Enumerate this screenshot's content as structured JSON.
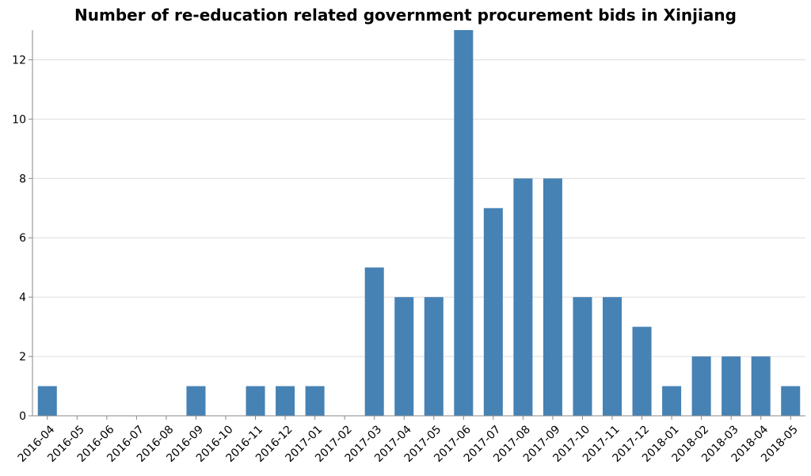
{
  "chart_data": {
    "type": "bar",
    "title": "Number of re-education related government procurement bids in Xinjiang",
    "xlabel": "",
    "ylabel": "",
    "categories": [
      "2016-04",
      "2016-05",
      "2016-06",
      "2016-07",
      "2016-08",
      "2016-09",
      "2016-10",
      "2016-11",
      "2016-12",
      "2017-01",
      "2017-02",
      "2017-03",
      "2017-04",
      "2017-05",
      "2017-06",
      "2017-07",
      "2017-08",
      "2017-09",
      "2017-10",
      "2017-11",
      "2017-12",
      "2018-01",
      "2018-02",
      "2018-03",
      "2018-04",
      "2018-05"
    ],
    "values": [
      1,
      0,
      0,
      0,
      0,
      1,
      0,
      1,
      1,
      1,
      0,
      5,
      4,
      4,
      13,
      7,
      8,
      8,
      4,
      4,
      3,
      1,
      2,
      2,
      2,
      1
    ],
    "ylim": [
      0,
      13
    ],
    "yticks": [
      "0",
      "2",
      "4",
      "6",
      "8",
      "10",
      "12"
    ],
    "grid": true,
    "bar_color": "#4682b4"
  }
}
